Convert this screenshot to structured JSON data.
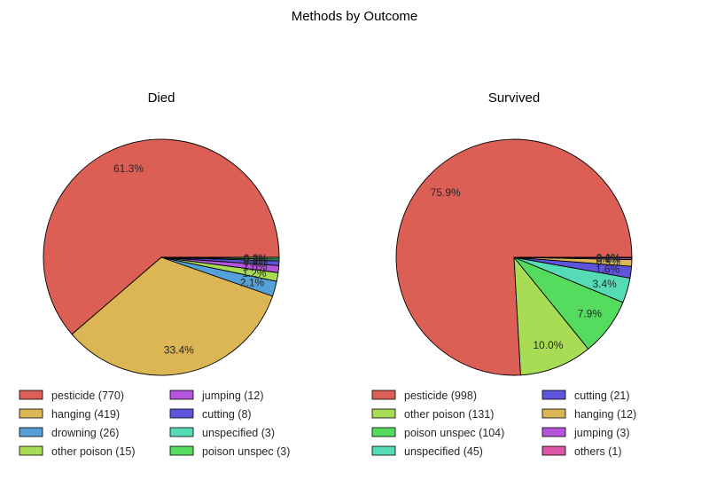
{
  "chart_data": {
    "type": "pie",
    "title": "Methods by Outcome",
    "edge_color": "#000000",
    "pies": [
      {
        "title": "Died",
        "legend_columns": 2,
        "legend_placement": "bottom",
        "slices": [
          {
            "label": "pesticide (770)",
            "value": 770,
            "pct": "61.3%",
            "color": "#dc5f55"
          },
          {
            "label": "hanging (419)",
            "value": 419,
            "pct": "33.4%",
            "color": "#dcb655"
          },
          {
            "label": "drowning (26)",
            "value": 26,
            "pct": "2.1%",
            "color": "#55a0d6"
          },
          {
            "label": "other poison (15)",
            "value": 15,
            "pct": "1.2%",
            "color": "#a8dc55"
          },
          {
            "label": "jumping (12)",
            "value": 12,
            "pct": "1.0%",
            "color": "#b455dc"
          },
          {
            "label": "cutting (8)",
            "value": 8,
            "pct": "0.6%",
            "color": "#5f55dc"
          },
          {
            "label": "unspecified (3)",
            "value": 3,
            "pct": "0.2%",
            "color": "#55dcb6"
          },
          {
            "label": "poison unspec (3)",
            "value": 3,
            "pct": "0.2%",
            "color": "#55dc5f"
          }
        ]
      },
      {
        "title": "Survived",
        "legend_columns": 2,
        "legend_placement": "bottom",
        "slices": [
          {
            "label": "pesticide (998)",
            "value": 998,
            "pct": "75.9%",
            "color": "#dc5f55"
          },
          {
            "label": "other poison (131)",
            "value": 131,
            "pct": "10.0%",
            "color": "#a8dc55"
          },
          {
            "label": "poison unspec (104)",
            "value": 104,
            "pct": "7.9%",
            "color": "#55dc5f"
          },
          {
            "label": "unspecified (45)",
            "value": 45,
            "pct": "3.4%",
            "color": "#55dcb6"
          },
          {
            "label": "cutting (21)",
            "value": 21,
            "pct": "1.6%",
            "color": "#5f55dc"
          },
          {
            "label": "hanging (12)",
            "value": 12,
            "pct": "0.9%",
            "color": "#dcb655"
          },
          {
            "label": "jumping (3)",
            "value": 3,
            "pct": "0.2%",
            "color": "#b455dc"
          },
          {
            "label": "others (1)",
            "value": 1,
            "pct": "0.1%",
            "color": "#dc55a8"
          }
        ]
      }
    ]
  }
}
